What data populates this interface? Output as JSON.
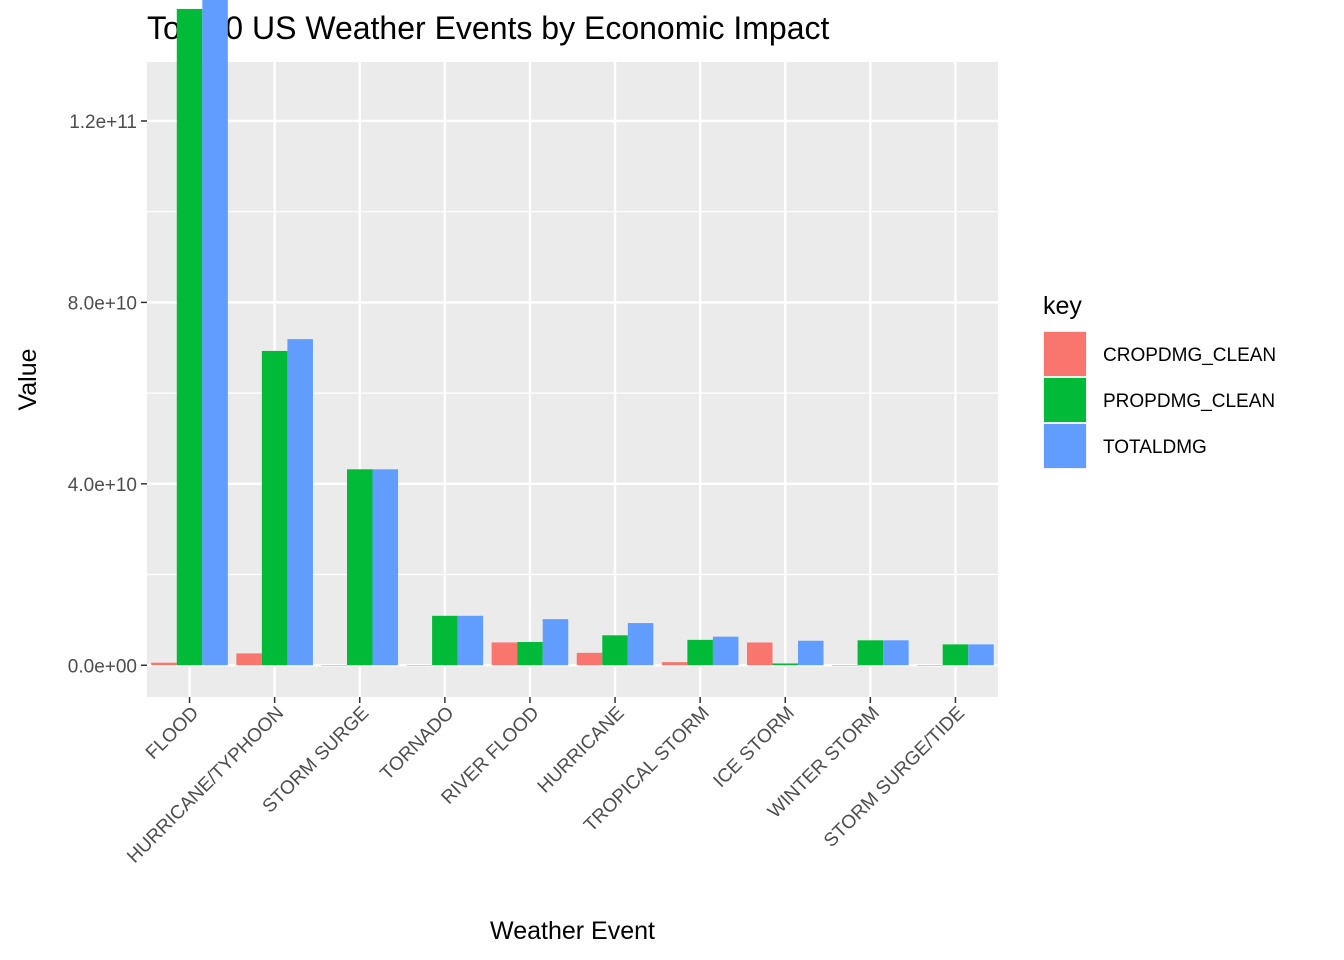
{
  "chart_data": {
    "type": "bar",
    "title": "Top 10 US Weather Events by Economic Impact",
    "xlabel": "Weather Event",
    "ylabel": "Value",
    "categories": [
      "FLOOD",
      "HURRICANE/TYPHOON",
      "STORM SURGE",
      "TORNADO",
      "RIVER FLOOD",
      "HURRICANE",
      "TROPICAL STORM",
      "ICE STORM",
      "WINTER STORM",
      "STORM SURGE/TIDE"
    ],
    "series": [
      {
        "name": "CROPDMG_CLEAN",
        "color": "#F8766D",
        "values": [
          566000000.0,
          2610000000.0,
          5000.0,
          420000.0,
          5030000000.0,
          2740000000.0,
          680000000.0,
          5020000000.0,
          300000.0,
          850000.0
        ]
      },
      {
        "name": "PROPDMG_CLEAN",
        "color": "#00BA38",
        "values": [
          144700000000.0,
          69300000000.0,
          43200000000.0,
          10900000000.0,
          5120000000.0,
          6600000000.0,
          5600000000.0,
          390000000.0,
          5500000000.0,
          4600000000.0
        ]
      },
      {
        "name": "TOTALDMG",
        "color": "#619CFF",
        "values": [
          150300000000.0,
          71900000000.0,
          43200000000.0,
          10900000000.0,
          10160000000.0,
          9300000000.0,
          6300000000.0,
          5400000000.0,
          5500000000.0,
          4600000000.0
        ]
      }
    ],
    "ylim": [
      -7000000000.0,
      133000000000.0
    ],
    "y_ticks": [
      0,
      40000000000.0,
      80000000000.0,
      120000000000.0
    ],
    "y_tick_labels": [
      "0.0e+00",
      "4.0e+10",
      "8.0e+10",
      "1.2e+11"
    ],
    "grid": true,
    "legend": {
      "title": "key",
      "placement": "right"
    }
  }
}
